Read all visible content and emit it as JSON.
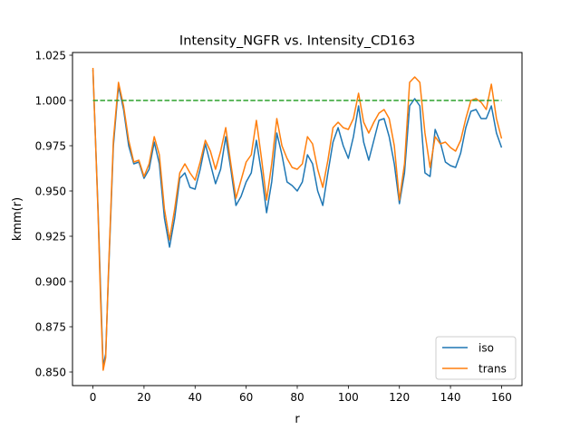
{
  "chart_data": {
    "type": "line",
    "title": "Intensity_NGFR vs. Intensity_CD163",
    "xlabel": "r",
    "ylabel": "kmm(r)",
    "xlim": [
      -8,
      168
    ],
    "ylim": [
      0.8425,
      1.0265
    ],
    "xticks": [
      0,
      20,
      40,
      60,
      80,
      100,
      120,
      140,
      160
    ],
    "xtick_labels": [
      "0",
      "20",
      "40",
      "60",
      "80",
      "100",
      "120",
      "140",
      "160"
    ],
    "yticks": [
      0.85,
      0.875,
      0.9,
      0.925,
      0.95,
      0.975,
      1.0,
      1.025
    ],
    "ytick_labels": [
      "0.850",
      "0.875",
      "0.900",
      "0.925",
      "0.950",
      "0.975",
      "1.000",
      "1.025"
    ],
    "grid": false,
    "legend_position": "lower-right",
    "x": [
      0,
      2,
      3,
      4,
      5,
      6,
      8,
      10,
      12,
      14,
      16,
      18,
      20,
      22,
      24,
      26,
      28,
      30,
      32,
      34,
      36,
      38,
      40,
      42,
      44,
      46,
      48,
      50,
      52,
      54,
      56,
      58,
      60,
      62,
      64,
      66,
      68,
      70,
      72,
      74,
      76,
      78,
      80,
      82,
      84,
      86,
      88,
      90,
      92,
      94,
      96,
      98,
      100,
      102,
      104,
      106,
      108,
      110,
      112,
      114,
      116,
      118,
      120,
      122,
      124,
      126,
      128,
      130,
      132,
      134,
      136,
      138,
      140,
      142,
      144,
      146,
      148,
      150,
      152,
      154,
      156,
      158,
      160
    ],
    "series": [
      {
        "name": "iso",
        "color": "#1f77b4",
        "values": [
          1.017,
          0.94,
          0.895,
          0.853,
          0.86,
          0.9,
          0.975,
          1.008,
          0.995,
          0.975,
          0.965,
          0.966,
          0.957,
          0.962,
          0.977,
          0.965,
          0.935,
          0.919,
          0.935,
          0.957,
          0.96,
          0.952,
          0.951,
          0.962,
          0.976,
          0.965,
          0.954,
          0.962,
          0.98,
          0.962,
          0.942,
          0.947,
          0.955,
          0.96,
          0.978,
          0.96,
          0.938,
          0.955,
          0.982,
          0.97,
          0.955,
          0.953,
          0.95,
          0.955,
          0.97,
          0.965,
          0.95,
          0.942,
          0.96,
          0.977,
          0.985,
          0.975,
          0.968,
          0.98,
          0.997,
          0.977,
          0.967,
          0.978,
          0.989,
          0.99,
          0.98,
          0.965,
          0.943,
          0.96,
          0.997,
          1.001,
          0.997,
          0.96,
          0.958,
          0.984,
          0.977,
          0.966,
          0.964,
          0.963,
          0.971,
          0.985,
          0.994,
          0.995,
          0.99,
          0.99,
          0.997,
          0.982,
          0.974
        ]
      },
      {
        "name": "trans",
        "color": "#ff7f0e",
        "values": [
          1.018,
          0.938,
          0.89,
          0.851,
          0.858,
          0.902,
          0.978,
          1.01,
          0.997,
          0.978,
          0.966,
          0.967,
          0.958,
          0.965,
          0.98,
          0.97,
          0.94,
          0.923,
          0.94,
          0.96,
          0.965,
          0.96,
          0.956,
          0.966,
          0.978,
          0.972,
          0.962,
          0.972,
          0.985,
          0.965,
          0.946,
          0.956,
          0.966,
          0.97,
          0.989,
          0.968,
          0.945,
          0.965,
          0.99,
          0.975,
          0.968,
          0.963,
          0.962,
          0.965,
          0.98,
          0.976,
          0.962,
          0.952,
          0.967,
          0.985,
          0.988,
          0.985,
          0.984,
          0.99,
          1.004,
          0.988,
          0.982,
          0.988,
          0.993,
          0.995,
          0.99,
          0.975,
          0.945,
          0.965,
          1.01,
          1.013,
          1.01,
          0.982,
          0.963,
          0.98,
          0.976,
          0.977,
          0.974,
          0.972,
          0.978,
          0.99,
          1.0,
          1.001,
          0.999,
          0.995,
          1.009,
          0.99,
          0.979
        ]
      },
      {
        "name": "",
        "color": "#2ca02c",
        "dashed": true,
        "values_constant": 1.0
      }
    ]
  }
}
